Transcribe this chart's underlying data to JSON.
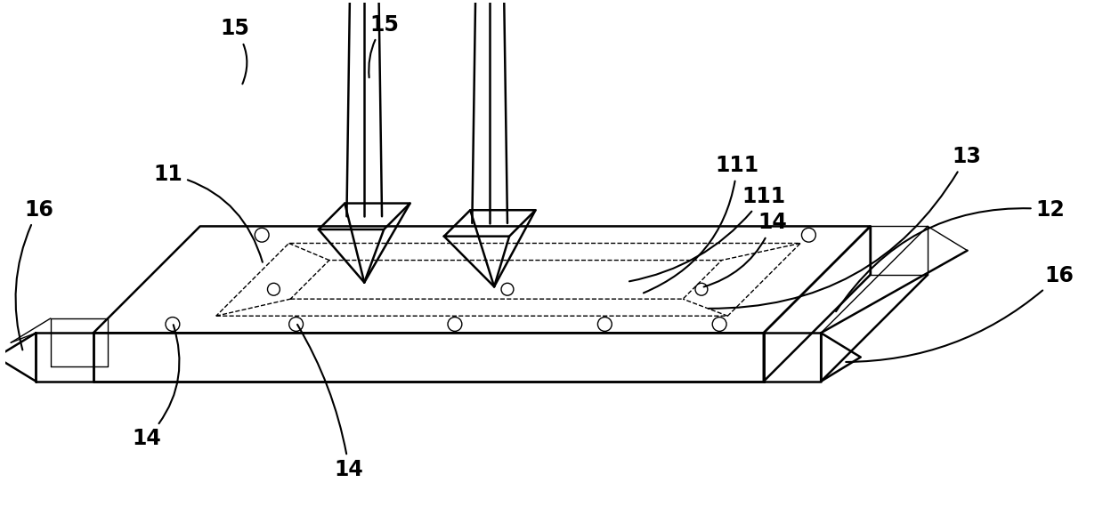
{
  "bg_color": "#ffffff",
  "line_color": "#000000",
  "fig_width": 12.39,
  "fig_height": 5.97,
  "lw_main": 1.8,
  "lw_thin": 1.0,
  "lw_dashed": 1.0
}
